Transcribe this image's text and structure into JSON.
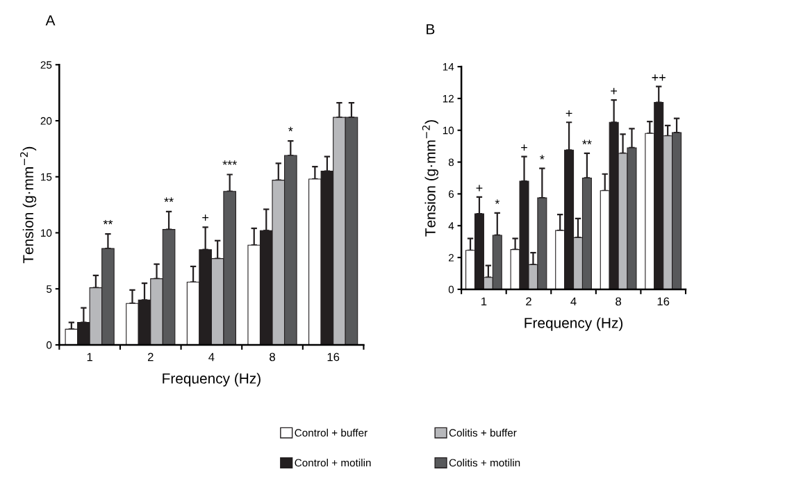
{
  "chart_data": [
    {
      "type": "bar",
      "title": "A",
      "xlabel": "Frequency (Hz)",
      "ylabel": "Tension (g·mm$^{−2}$)",
      "categories": [
        "1",
        "2",
        "4",
        "8",
        "16"
      ],
      "ylim": [
        0,
        25
      ],
      "yticks": [
        0,
        5,
        10,
        15,
        20,
        25
      ],
      "legend": "bottom",
      "series": [
        {
          "name": "Control + buffer",
          "color": "#ffffff",
          "values": [
            1.4,
            3.7,
            5.6,
            8.9,
            14.8
          ],
          "errors": [
            [
              1.4,
              2.0
            ],
            [
              3.7,
              4.9
            ],
            [
              5.6,
              7.0
            ],
            [
              8.9,
              10.4
            ],
            [
              14.8,
              15.9
            ]
          ]
        },
        {
          "name": "Control + motilin",
          "color": "#231f20",
          "values": [
            2.0,
            4.0,
            8.5,
            10.2,
            15.5
          ],
          "errors": [
            [
              2.0,
              3.3
            ],
            [
              4.0,
              5.5
            ],
            [
              8.5,
              10.5
            ],
            [
              10.2,
              12.1
            ],
            [
              15.5,
              16.8
            ]
          ]
        },
        {
          "name": "Colitis + buffer",
          "color": "#b7b8bb",
          "values": [
            5.1,
            5.9,
            7.7,
            14.7,
            20.3
          ],
          "errors": [
            [
              5.1,
              6.2
            ],
            [
              5.9,
              7.2
            ],
            [
              7.7,
              9.3
            ],
            [
              14.7,
              16.2
            ],
            [
              20.3,
              21.6
            ]
          ]
        },
        {
          "name": "Colitis + motilin",
          "color": "#58595b",
          "values": [
            8.6,
            10.3,
            13.7,
            16.9,
            20.3
          ],
          "errors": [
            [
              8.6,
              9.9
            ],
            [
              10.3,
              11.9
            ],
            [
              13.7,
              15.2
            ],
            [
              16.9,
              18.2
            ],
            [
              20.3,
              21.6
            ]
          ]
        }
      ],
      "annotations": [
        {
          "text": "**",
          "y": 9.9
        },
        {
          "text": "**",
          "y": 11.9
        },
        {
          "text": "+",
          "x": "4",
          "y": 10.5
        },
        {
          "text": "***",
          "y": 15.2
        },
        {
          "text": "*",
          "y": 18.2
        }
      ]
    },
    {
      "type": "bar",
      "title": "B",
      "xlabel": "Frequency (Hz)",
      "ylabel": "Tension (g·mm$^{−2}$)",
      "categories": [
        "1",
        "2",
        "4",
        "8",
        "16"
      ],
      "ylim": [
        0,
        14
      ],
      "yticks": [
        0,
        2,
        4,
        6,
        8,
        10,
        12,
        14
      ],
      "series": [
        {
          "color": "#ffffff",
          "values": [
            2.45,
            2.5,
            3.7,
            6.2,
            9.8
          ],
          "errors": [
            [
              2.45,
              3.2
            ],
            [
              2.5,
              3.2
            ],
            [
              3.7,
              4.7
            ],
            [
              6.2,
              7.25
            ],
            [
              9.8,
              10.55
            ]
          ]
        },
        {
          "color": "#231f20",
          "values": [
            4.75,
            6.8,
            8.75,
            10.5,
            11.75
          ],
          "errors": [
            [
              4.75,
              5.8
            ],
            [
              6.8,
              8.35
            ],
            [
              8.75,
              10.5
            ],
            [
              10.5,
              11.9
            ],
            [
              11.75,
              12.75
            ]
          ]
        },
        {
          "color": "#b7b8bb",
          "values": [
            0.75,
            1.55,
            3.25,
            8.55,
            9.65
          ],
          "errors": [
            [
              0.75,
              1.5
            ],
            [
              1.55,
              2.3
            ],
            [
              3.25,
              4.45
            ],
            [
              8.55,
              9.75
            ],
            [
              9.65,
              10.3
            ]
          ]
        },
        {
          "color": "#58595b",
          "values": [
            3.4,
            5.75,
            7.0,
            8.9,
            9.85
          ],
          "errors": [
            [
              3.4,
              4.8
            ],
            [
              5.75,
              7.6
            ],
            [
              7.0,
              8.55
            ],
            [
              8.9,
              10.1
            ],
            [
              9.85,
              10.75
            ]
          ]
        }
      ],
      "annotations": [
        {
          "text": "+",
          "x": "1",
          "y": 5.8
        },
        {
          "text": "*",
          "x": "1",
          "y": 4.8
        },
        {
          "text": "+",
          "x": "2",
          "y": 8.35
        },
        {
          "text": "*",
          "y": 7.6
        },
        {
          "text": "+",
          "x": "4",
          "y": 10.5
        },
        {
          "text": "**",
          "x": "4",
          "y": 8.55
        },
        {
          "text": "+",
          "x": "8",
          "y": 11.9
        },
        {
          "text": "++",
          "x": "16",
          "y": 12.75
        }
      ]
    }
  ]
}
